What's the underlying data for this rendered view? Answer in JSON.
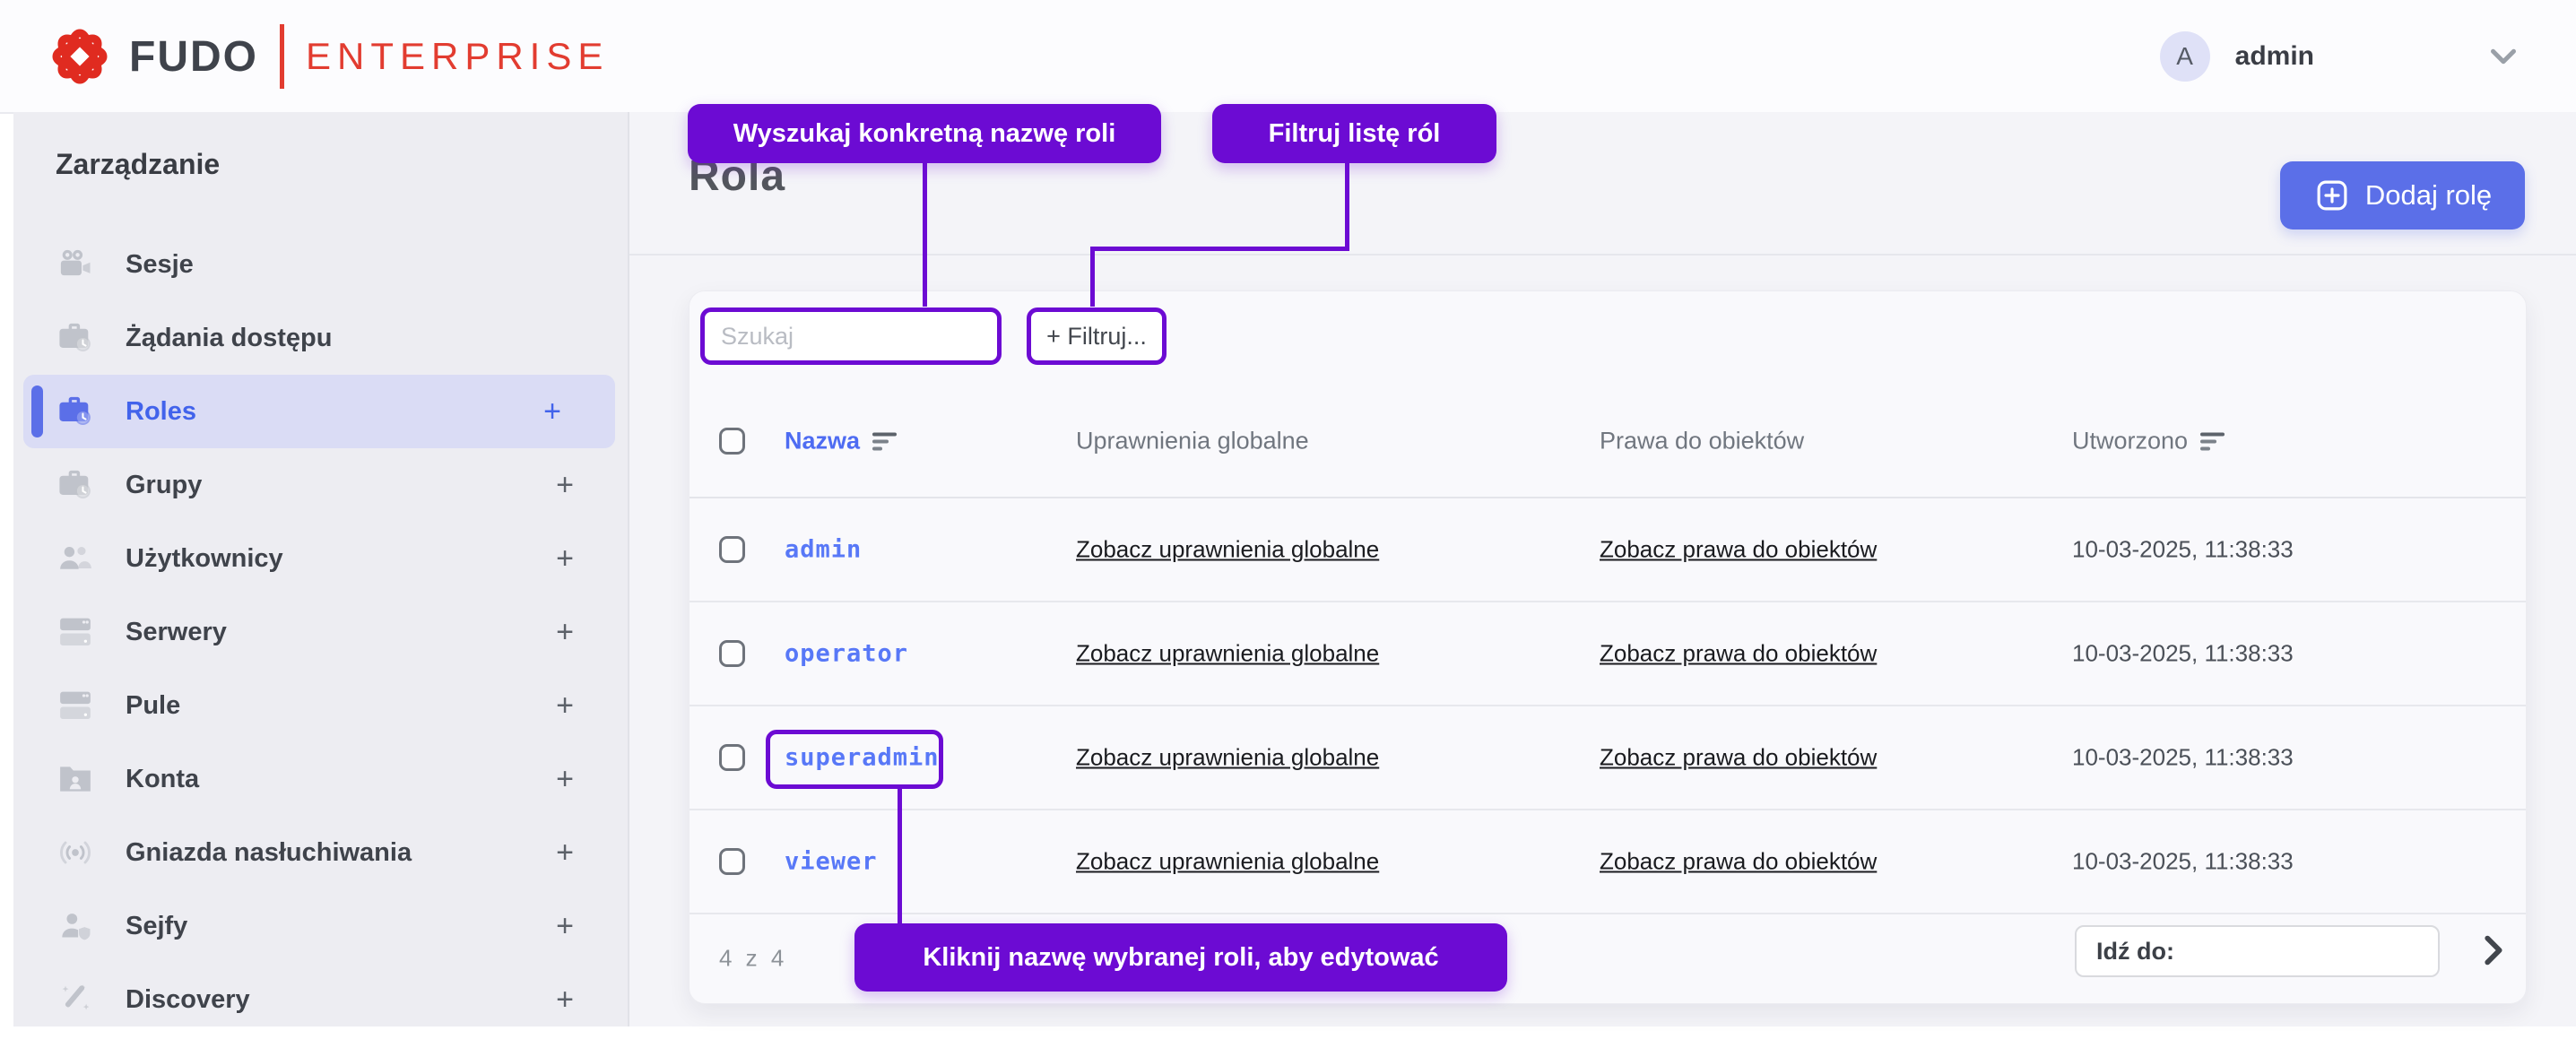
{
  "brand": {
    "name_primary": "FUDO",
    "name_secondary": "ENTERPRISE"
  },
  "topbar": {
    "avatar_letter": "A",
    "username": "admin"
  },
  "sidebar": {
    "heading": "Zarządzanie",
    "items": [
      {
        "label": "Sesje",
        "icon": "video-camera-icon",
        "active": false,
        "expandable": false
      },
      {
        "label": "Żądania dostępu",
        "icon": "briefcase-clock-icon",
        "active": false,
        "expandable": false
      },
      {
        "label": "Roles",
        "icon": "briefcase-clock-icon",
        "active": true,
        "expandable": true
      },
      {
        "label": "Grupy",
        "icon": "briefcase-clock-icon",
        "active": false,
        "expandable": true
      },
      {
        "label": "Użytkownicy",
        "icon": "users-icon",
        "active": false,
        "expandable": true
      },
      {
        "label": "Serwery",
        "icon": "servers-icon",
        "active": false,
        "expandable": true
      },
      {
        "label": "Pule",
        "icon": "servers-icon",
        "active": false,
        "expandable": true
      },
      {
        "label": "Konta",
        "icon": "folder-user-icon",
        "active": false,
        "expandable": true
      },
      {
        "label": "Gniazda nasłuchiwania",
        "icon": "broadcast-icon",
        "active": false,
        "expandable": true
      },
      {
        "label": "Sejfy",
        "icon": "user-shield-icon",
        "active": false,
        "expandable": true
      },
      {
        "label": "Discovery",
        "icon": "magic-wand-icon",
        "active": false,
        "expandable": true
      }
    ],
    "expand_glyph": "+"
  },
  "page": {
    "title": "Rola",
    "add_button_label": "Dodaj rolę"
  },
  "toolbar": {
    "search_placeholder": "Szukaj",
    "filter_button_label": "+ Filtruj..."
  },
  "annotations": {
    "search_tip": "Wyszukaj konkretną nazwę roli",
    "filter_tip": "Filtruj listę ról",
    "edit_tip": "Kliknij nazwę wybranej roli, aby edytować"
  },
  "table": {
    "headers": {
      "name": "Nazwa",
      "global_permissions": "Uprawnienia globalne",
      "object_rights": "Prawa do obiektów",
      "created": "Utworzono"
    },
    "rows": [
      {
        "name": "admin",
        "global_link": "Zobacz uprawnienia globalne",
        "object_link": "Zobacz prawa do obiektów",
        "created": "10-03-2025, 11:38:33",
        "highlighted": false
      },
      {
        "name": "operator",
        "global_link": "Zobacz uprawnienia globalne",
        "object_link": "Zobacz prawa do obiektów",
        "created": "10-03-2025, 11:38:33",
        "highlighted": false
      },
      {
        "name": "superadmin",
        "global_link": "Zobacz uprawnienia globalne",
        "object_link": "Zobacz prawa do obiektów",
        "created": "10-03-2025, 11:38:33",
        "highlighted": true
      },
      {
        "name": "viewer",
        "global_link": "Zobacz uprawnienia globalne",
        "object_link": "Zobacz prawa do obiektów",
        "created": "10-03-2025, 11:38:33",
        "highlighted": false
      }
    ]
  },
  "footer": {
    "count": "4 z 4",
    "goto_label": "Idź do:"
  },
  "colors": {
    "annotation_purple": "#6c0bd3",
    "accent_indigo": "#5b6fe8",
    "link_blue": "#5878f7",
    "brand_red": "#e23c30",
    "sidebar_bg": "#ededf2",
    "main_bg": "#f4f4f8",
    "card_bg": "#f9f9fc"
  }
}
